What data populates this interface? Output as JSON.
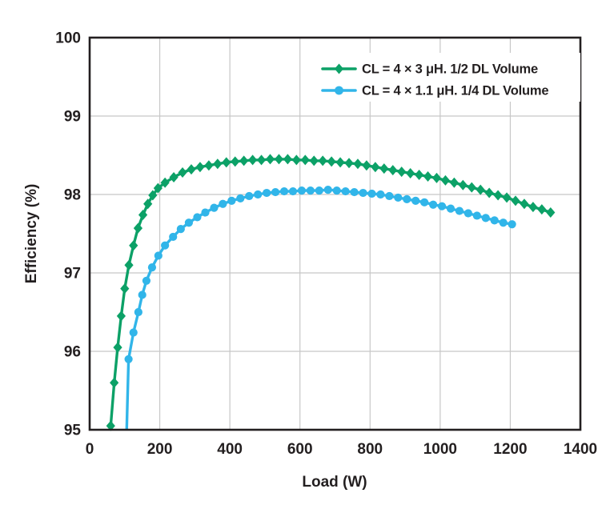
{
  "figure": {
    "background": "#ffffff",
    "text_color": "#231f20",
    "grid_color": "#c7c7c7",
    "axis_color": "#231f20"
  },
  "chart_data": {
    "type": "line",
    "title": "",
    "xlabel": "Load (W)",
    "ylabel": "Efficiency (%)",
    "xlim": [
      0,
      1400
    ],
    "ylim": [
      95,
      100
    ],
    "x_ticks": [
      0,
      200,
      400,
      600,
      800,
      1000,
      1200,
      1400
    ],
    "y_ticks": [
      95,
      96,
      97,
      98,
      99,
      100
    ],
    "grid": true,
    "legend_position": "top-right",
    "series": [
      {
        "name": "CL = 4 × 3 μH. 1/2 DL Volume",
        "color": "#0ca167",
        "marker": "diamond",
        "points": [
          [
            60,
            95.05
          ],
          [
            70,
            95.6
          ],
          [
            80,
            96.05
          ],
          [
            90,
            96.45
          ],
          [
            100,
            96.8
          ],
          [
            112,
            97.1
          ],
          [
            125,
            97.35
          ],
          [
            138,
            97.57
          ],
          [
            152,
            97.74
          ],
          [
            166,
            97.88
          ],
          [
            180,
            97.99
          ],
          [
            195,
            98.08
          ],
          [
            215,
            98.15
          ],
          [
            240,
            98.22
          ],
          [
            265,
            98.28
          ],
          [
            290,
            98.32
          ],
          [
            315,
            98.35
          ],
          [
            340,
            98.37
          ],
          [
            365,
            98.39
          ],
          [
            390,
            98.41
          ],
          [
            415,
            98.42
          ],
          [
            440,
            98.43
          ],
          [
            465,
            98.44
          ],
          [
            490,
            98.44
          ],
          [
            515,
            98.45
          ],
          [
            540,
            98.45
          ],
          [
            565,
            98.45
          ],
          [
            590,
            98.44
          ],
          [
            615,
            98.44
          ],
          [
            640,
            98.43
          ],
          [
            665,
            98.43
          ],
          [
            690,
            98.42
          ],
          [
            715,
            98.41
          ],
          [
            740,
            98.4
          ],
          [
            765,
            98.39
          ],
          [
            790,
            98.37
          ],
          [
            815,
            98.35
          ],
          [
            840,
            98.33
          ],
          [
            865,
            98.31
          ],
          [
            890,
            98.29
          ],
          [
            915,
            98.27
          ],
          [
            940,
            98.25
          ],
          [
            965,
            98.23
          ],
          [
            990,
            98.21
          ],
          [
            1015,
            98.18
          ],
          [
            1040,
            98.15
          ],
          [
            1065,
            98.12
          ],
          [
            1090,
            98.09
          ],
          [
            1115,
            98.06
          ],
          [
            1140,
            98.02
          ],
          [
            1165,
            97.99
          ],
          [
            1190,
            97.96
          ],
          [
            1215,
            97.92
          ],
          [
            1240,
            97.88
          ],
          [
            1265,
            97.84
          ],
          [
            1290,
            97.81
          ],
          [
            1315,
            97.77
          ]
        ]
      },
      {
        "name": "CL = 4 × 1.1 μH. 1/4 DL Volume",
        "color": "#31b5e9",
        "marker": "circle",
        "points": [
          [
            101,
            94.2
          ],
          [
            111,
            95.9
          ],
          [
            125,
            96.24
          ],
          [
            139,
            96.5
          ],
          [
            150,
            96.72
          ],
          [
            162,
            96.9
          ],
          [
            178,
            97.07
          ],
          [
            196,
            97.22
          ],
          [
            215,
            97.35
          ],
          [
            238,
            97.46
          ],
          [
            260,
            97.56
          ],
          [
            283,
            97.64
          ],
          [
            307,
            97.71
          ],
          [
            330,
            97.77
          ],
          [
            355,
            97.83
          ],
          [
            380,
            97.88
          ],
          [
            405,
            97.92
          ],
          [
            430,
            97.95
          ],
          [
            455,
            97.98
          ],
          [
            480,
            98.0
          ],
          [
            505,
            98.02
          ],
          [
            530,
            98.03
          ],
          [
            555,
            98.04
          ],
          [
            580,
            98.04
          ],
          [
            605,
            98.05
          ],
          [
            630,
            98.05
          ],
          [
            655,
            98.05
          ],
          [
            680,
            98.06
          ],
          [
            705,
            98.05
          ],
          [
            730,
            98.04
          ],
          [
            755,
            98.03
          ],
          [
            780,
            98.02
          ],
          [
            805,
            98.01
          ],
          [
            830,
            98.0
          ],
          [
            855,
            97.98
          ],
          [
            880,
            97.96
          ],
          [
            905,
            97.94
          ],
          [
            930,
            97.92
          ],
          [
            955,
            97.9
          ],
          [
            980,
            97.87
          ],
          [
            1005,
            97.85
          ],
          [
            1030,
            97.82
          ],
          [
            1055,
            97.79
          ],
          [
            1080,
            97.76
          ],
          [
            1105,
            97.73
          ],
          [
            1130,
            97.7
          ],
          [
            1155,
            97.67
          ],
          [
            1180,
            97.64
          ],
          [
            1205,
            97.62
          ]
        ]
      }
    ]
  }
}
